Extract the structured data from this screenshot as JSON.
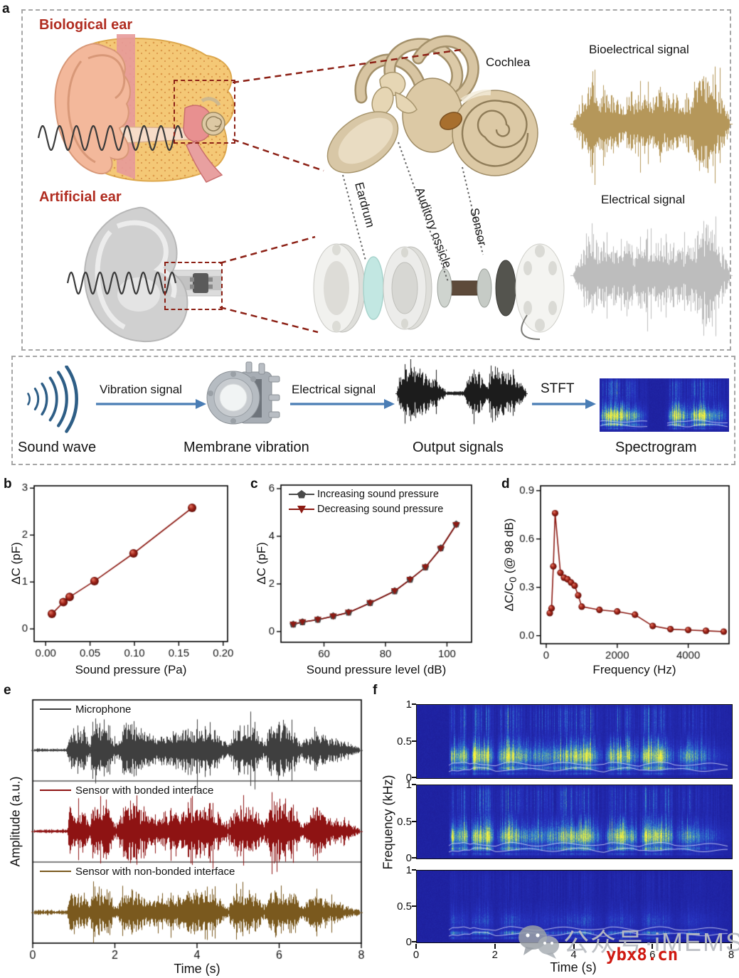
{
  "panel_labels": {
    "a": "a",
    "b": "b",
    "c": "c",
    "d": "d",
    "e": "e",
    "f": "f"
  },
  "panel_a": {
    "biological_ear_label": "Biological ear",
    "artificial_ear_label": "Artificial ear",
    "cochlea_label": "Cochlea",
    "eardrum_label": "Eardrum",
    "auditory_ossicle_label": "Auditory ossicle",
    "sensor_label": "Sensor",
    "bioelectrical_signal_label": "Bioelectrical signal",
    "electrical_signal_label": "Electrical signal",
    "accent_red": "#b02c20",
    "flow": {
      "sound_wave": "Sound wave",
      "vibration_signal": "Vibration signal",
      "membrane_vibration": "Membrane vibration",
      "electrical_signal": "Electrical signal",
      "output_signals": "Output signals",
      "stft": "STFT",
      "spectrogram": "Spectrogram"
    }
  },
  "chart_data": [
    {
      "id": "b",
      "type": "scatter",
      "xlabel": "Sound pressure (Pa)",
      "ylabel": "ΔC (pF)",
      "xlim": [
        -0.013,
        0.205
      ],
      "ylim": [
        -0.27,
        3.05
      ],
      "xticks": [
        0.0,
        0.05,
        0.1,
        0.15,
        0.2
      ],
      "xticklabels": [
        "0.00",
        "0.05",
        "0.10",
        "0.15",
        "0.20"
      ],
      "yticks": [
        0,
        1,
        2,
        3
      ],
      "yticklabels": [
        "0",
        "1",
        "2",
        "3"
      ],
      "x": [
        0.007,
        0.02,
        0.027,
        0.055,
        0.099,
        0.165
      ],
      "y": [
        0.32,
        0.57,
        0.68,
        1.02,
        1.61,
        2.58
      ],
      "line_color": "#8c1a13",
      "marker": "sphere"
    },
    {
      "id": "c",
      "type": "line",
      "xlabel": "Sound pressure level (dB)",
      "ylabel": "ΔC (pF)",
      "xlim": [
        46,
        108
      ],
      "ylim": [
        -0.45,
        6.15
      ],
      "xticks": [
        60,
        80,
        100
      ],
      "xticklabels": [
        "60",
        "80",
        "100"
      ],
      "yticks": [
        0,
        2,
        4,
        6
      ],
      "yticklabels": [
        "0",
        "2",
        "4",
        "6"
      ],
      "x": [
        50,
        53,
        58,
        63,
        68,
        75,
        83,
        88,
        93,
        98,
        103
      ],
      "series": [
        {
          "name": "Increasing sound pressure",
          "color": "#4a4a4a",
          "marker": "pentagon",
          "values": [
            0.3,
            0.4,
            0.5,
            0.65,
            0.8,
            1.2,
            1.7,
            2.18,
            2.7,
            3.5,
            4.5
          ]
        },
        {
          "name": "Decreasing sound pressure",
          "color": "#8c1a13",
          "marker": "triangle-down",
          "values": [
            0.3,
            0.4,
            0.5,
            0.64,
            0.8,
            1.2,
            1.7,
            2.18,
            2.7,
            3.48,
            4.48
          ]
        }
      ],
      "line_color": "#7a1410"
    },
    {
      "id": "d",
      "type": "line",
      "xlabel": "Frequency (Hz)",
      "ylabel_pre": "ΔC/C",
      "ylabel_sub": "0",
      "ylabel_post": " (@ 98 dB)",
      "xlim": [
        -160,
        5150
      ],
      "ylim": [
        -0.05,
        0.93
      ],
      "xticks": [
        0,
        2000,
        4000
      ],
      "xticklabels": [
        "0",
        "2000",
        "4000"
      ],
      "yticks": [
        0.0,
        0.3,
        0.6,
        0.9
      ],
      "yticklabels": [
        "0.0",
        "0.3",
        "0.6",
        "0.9"
      ],
      "x": [
        100,
        150,
        200,
        250,
        400,
        500,
        600,
        700,
        800,
        900,
        1000,
        1500,
        2000,
        2500,
        3000,
        3500,
        4000,
        4500,
        5000
      ],
      "y": [
        0.14,
        0.17,
        0.43,
        0.76,
        0.39,
        0.36,
        0.35,
        0.33,
        0.31,
        0.25,
        0.18,
        0.16,
        0.15,
        0.13,
        0.06,
        0.04,
        0.035,
        0.03,
        0.025
      ],
      "line_color": "#8c1a13",
      "marker": "sphere"
    },
    {
      "id": "e",
      "type": "waveform",
      "xlabel": "Time (s)",
      "ylabel": "Amplitude (a.u.)",
      "xlim": [
        0,
        8
      ],
      "xticks": [
        0,
        2,
        4,
        6,
        8
      ],
      "xticklabels": [
        "0",
        "2",
        "4",
        "6",
        "8"
      ],
      "series": [
        {
          "name": "Microphone",
          "color": "#3f3f3f"
        },
        {
          "name": "Sensor with bonded interface",
          "color": "#8e1313"
        },
        {
          "name": "Sensor with non-bonded interface",
          "color": "#7a591e"
        }
      ],
      "envelope": [
        [
          0,
          0.03
        ],
        [
          0.8,
          0.04
        ],
        [
          0.9,
          0.85
        ],
        [
          1.05,
          0.5
        ],
        [
          1.2,
          0.75
        ],
        [
          1.35,
          0.2
        ],
        [
          1.45,
          0.9
        ],
        [
          1.6,
          0.8
        ],
        [
          1.8,
          0.85
        ],
        [
          2.0,
          0.15
        ],
        [
          2.2,
          0.7
        ],
        [
          2.35,
          0.9
        ],
        [
          2.6,
          0.6
        ],
        [
          2.9,
          0.45
        ],
        [
          3.2,
          0.5
        ],
        [
          3.5,
          0.55
        ],
        [
          3.8,
          0.7
        ],
        [
          4.1,
          0.75
        ],
        [
          4.35,
          0.8
        ],
        [
          4.6,
          0.4
        ],
        [
          4.75,
          0.15
        ],
        [
          4.9,
          0.65
        ],
        [
          5.1,
          0.75
        ],
        [
          5.4,
          0.7
        ],
        [
          5.65,
          0.25
        ],
        [
          5.8,
          0.8
        ],
        [
          6.1,
          0.85
        ],
        [
          6.4,
          0.6
        ],
        [
          6.55,
          0.2
        ],
        [
          6.9,
          0.65
        ],
        [
          7.1,
          0.5
        ],
        [
          7.4,
          0.35
        ],
        [
          7.7,
          0.2
        ],
        [
          8,
          0.08
        ]
      ]
    },
    {
      "id": "f",
      "type": "spectrogram",
      "xlabel": "Time (s)",
      "ylabel": "Frequency (kHz)",
      "xlim": [
        0,
        8
      ],
      "xticks": [
        0,
        2,
        4,
        6,
        8
      ],
      "xticklabels": [
        "0",
        "2",
        "4",
        "6",
        "8"
      ],
      "yticks": [
        1,
        0.5,
        0
      ],
      "yticklabels": [
        "1",
        "0.5",
        "0"
      ],
      "panels": [
        {
          "label": "microphone-spectrogram"
        },
        {
          "label": "bonded-sensor-spectrogram"
        },
        {
          "label": "non-bonded-sensor-spectrogram"
        }
      ]
    }
  ],
  "watermark": {
    "wechat_label": "公众号·iMEMS",
    "site": "ybx8.cn"
  }
}
